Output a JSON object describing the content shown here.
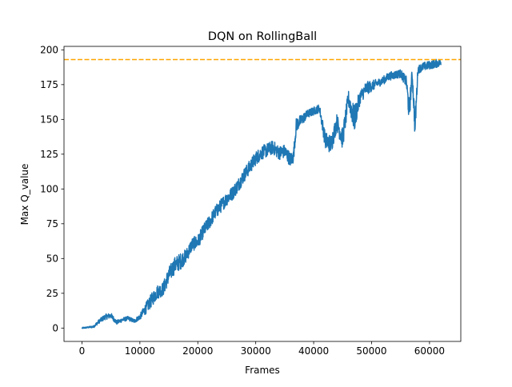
{
  "chart_data": {
    "type": "line",
    "title": "DQN on RollingBall",
    "xlabel": "Frames",
    "ylabel": "Max Q_value",
    "xlim": [
      -3100,
      65400
    ],
    "ylim": [
      -9.6,
      202.5
    ],
    "xticks": [
      0,
      10000,
      20000,
      30000,
      40000,
      50000,
      60000
    ],
    "xtick_labels": [
      "0",
      "10000",
      "20000",
      "30000",
      "40000",
      "50000",
      "60000"
    ],
    "yticks": [
      0,
      25,
      50,
      75,
      100,
      125,
      150,
      175,
      200
    ],
    "ytick_labels": [
      "0",
      "25",
      "50",
      "75",
      "100",
      "125",
      "150",
      "175",
      "200"
    ],
    "grid": false,
    "legend": "none",
    "series": [
      {
        "color": "#1f77b4",
        "x": [
          0,
          1000,
          2000,
          3000,
          4000,
          5000,
          6000,
          7000,
          8000,
          9000,
          10000,
          11000,
          12000,
          13000,
          14000,
          15000,
          16000,
          17000,
          18000,
          19000,
          20000,
          21000,
          22000,
          23000,
          24000,
          25000,
          26000,
          27000,
          28000,
          29000,
          30000,
          31000,
          32000,
          33000,
          34000,
          35000,
          36000,
          36500,
          37000,
          38000,
          39000,
          40000,
          41000,
          42000,
          43000,
          44000,
          45000,
          46000,
          47000,
          48000,
          49000,
          50000,
          51000,
          52000,
          53000,
          54000,
          55000,
          56000,
          56500,
          57000,
          57500,
          58000,
          58500,
          59000,
          60000,
          61000,
          62000
        ],
        "y": [
          0,
          0.5,
          1,
          5,
          8,
          9,
          4,
          6,
          7,
          5,
          8,
          14,
          20,
          26,
          28,
          38,
          45,
          48,
          52,
          60,
          62,
          70,
          76,
          83,
          88,
          93,
          97,
          103,
          110,
          116,
          122,
          126,
          128,
          130,
          126,
          127,
          121,
          123,
          146,
          150,
          154,
          156,
          158,
          135,
          132,
          148,
          136,
          165,
          150,
          166,
          172,
          174,
          176,
          178,
          181,
          182,
          183,
          177,
          155,
          183,
          145,
          186,
          187,
          188,
          189,
          190,
          191
        ],
        "noise": [
          0.5,
          0.5,
          0.8,
          1.5,
          2,
          2,
          1.5,
          1.5,
          1.5,
          1.5,
          2,
          4,
          5,
          5,
          5,
          6,
          6,
          6,
          5,
          5,
          5,
          5,
          5,
          5,
          5,
          5,
          5,
          5,
          5,
          5,
          5,
          5,
          5,
          5,
          5,
          5,
          5,
          5,
          5,
          4,
          3,
          3,
          3,
          6,
          7,
          6,
          8,
          6,
          10,
          5,
          5,
          4,
          3,
          3,
          3,
          3,
          3,
          4,
          10,
          4,
          10,
          3,
          3,
          3,
          3,
          3,
          3
        ]
      }
    ],
    "hline": {
      "y": 193,
      "color": "#ffa500",
      "style": "dashed"
    }
  }
}
